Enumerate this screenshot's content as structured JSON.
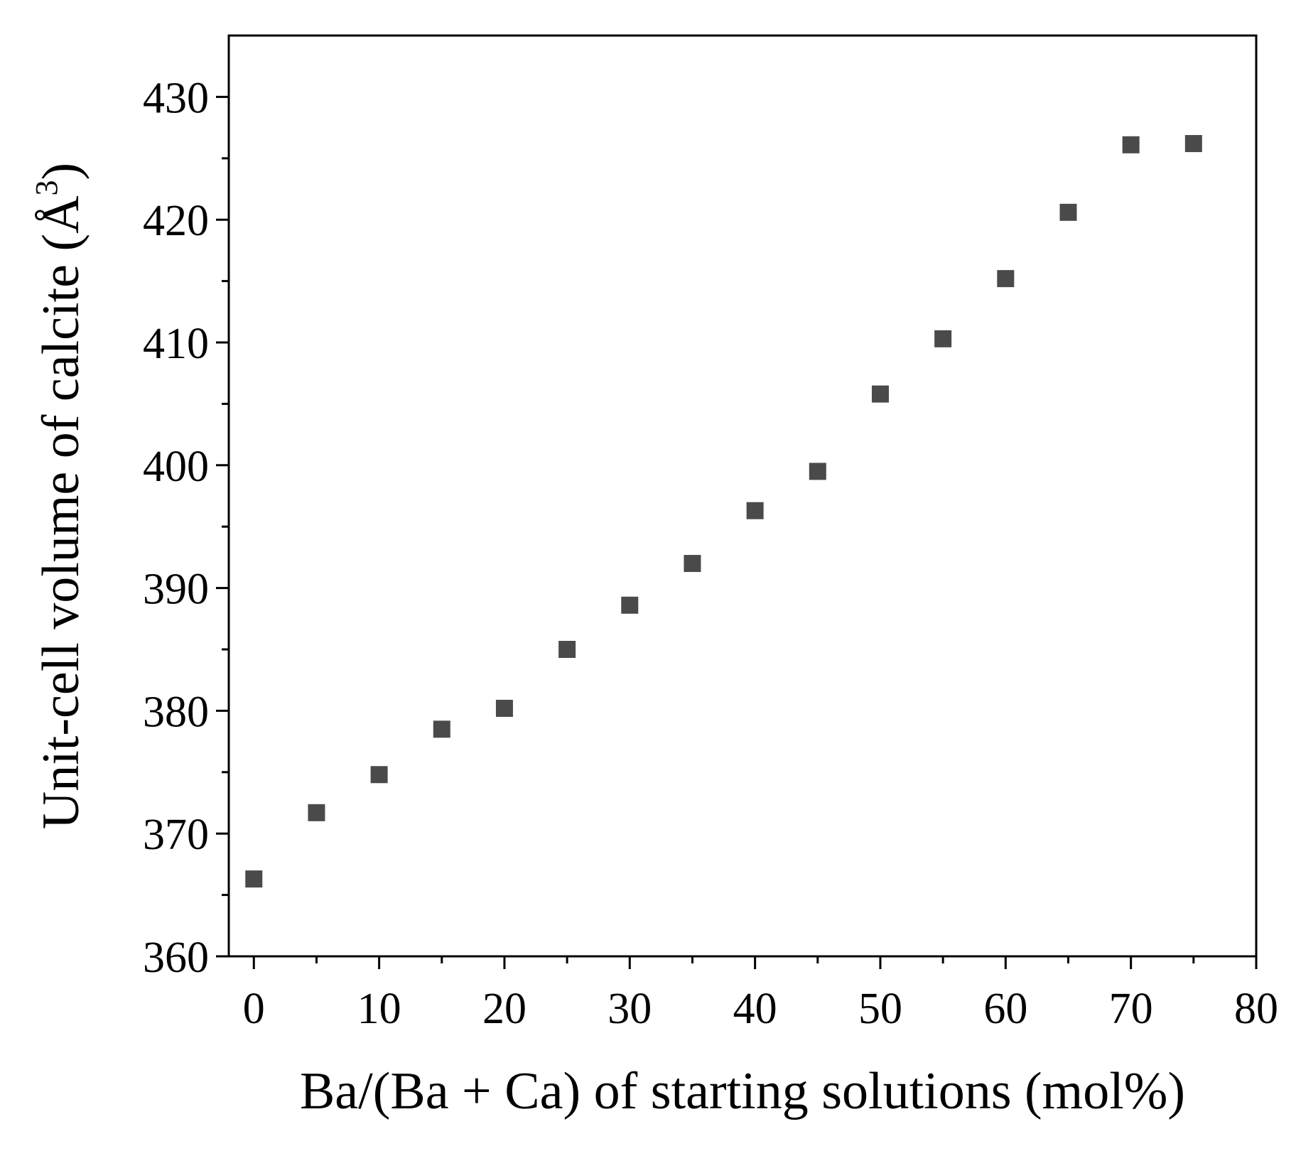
{
  "chart_data": {
    "type": "scatter",
    "title": "",
    "xlabel": "Ba/(Ba + Ca) of starting solutions (mol%)",
    "ylabel": {
      "main": "Unit-cell volume of calcite (Å",
      "superscript": "3",
      "close": ")"
    },
    "xlim": [
      -2,
      80
    ],
    "ylim": [
      360,
      435
    ],
    "x_ticks": [
      0,
      10,
      20,
      30,
      40,
      50,
      60,
      70,
      80
    ],
    "x_minor_ticks": [
      5,
      15,
      25,
      35,
      45,
      55,
      65,
      75
    ],
    "y_ticks": [
      360,
      370,
      380,
      390,
      400,
      410,
      420,
      430
    ],
    "y_minor_ticks": [
      365,
      375,
      385,
      395,
      405,
      415,
      425
    ],
    "grid": false,
    "marker": "square",
    "marker_color": "#4a4a4a",
    "series": [
      {
        "name": "calcite",
        "x": [
          0,
          5,
          10,
          15,
          20,
          25,
          30,
          35,
          40,
          45,
          50,
          55,
          60,
          65,
          70,
          75
        ],
        "y": [
          366.3,
          371.7,
          374.8,
          378.5,
          380.2,
          385.0,
          388.6,
          392.0,
          396.3,
          399.5,
          405.8,
          410.3,
          415.2,
          420.6,
          426.1,
          426.2
        ]
      }
    ]
  }
}
